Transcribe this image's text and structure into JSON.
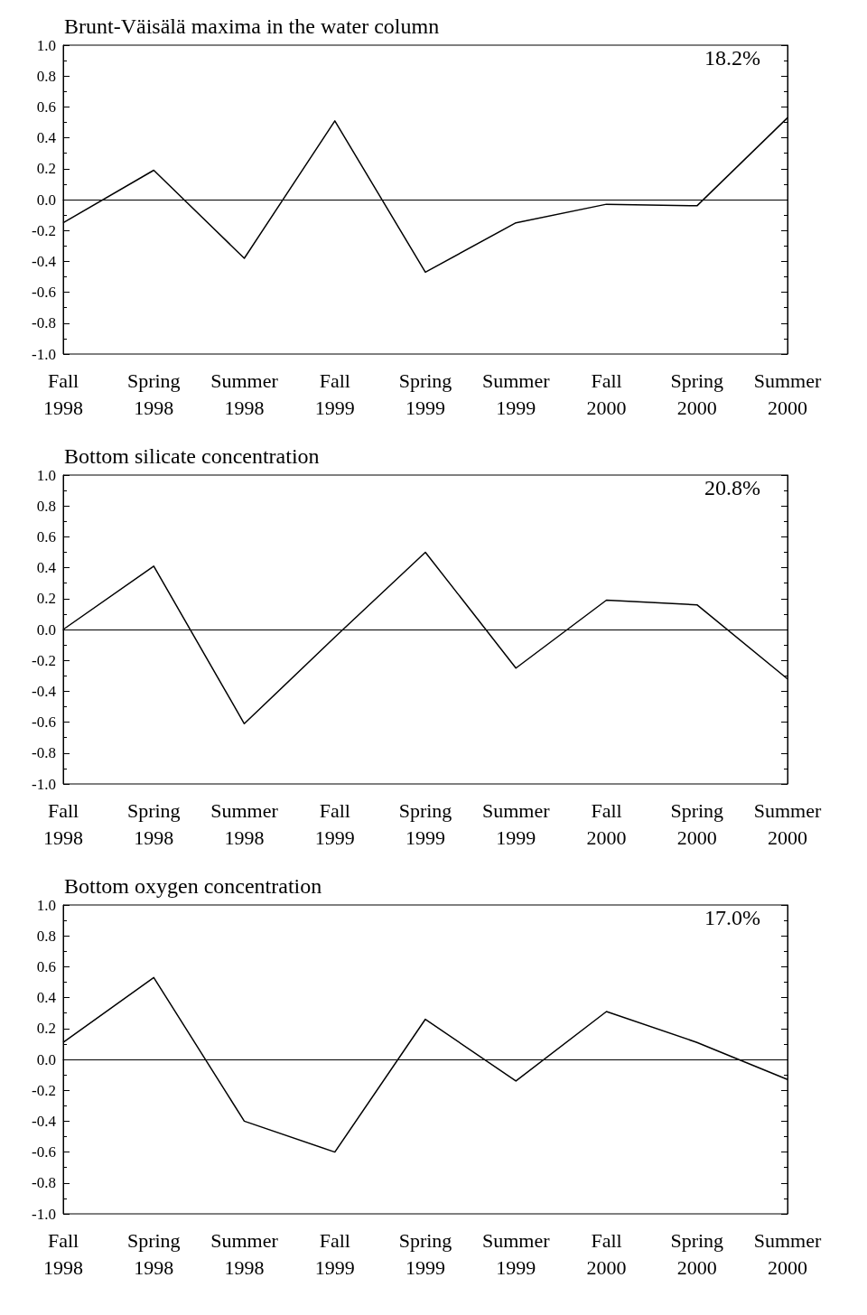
{
  "chart_data": [
    {
      "type": "line",
      "title": "Brunt-Väisälä maxima in the water column",
      "annotations": [
        "18.2%"
      ],
      "categories": [
        "Fall 1998",
        "Spring 1998",
        "Summer 1998",
        "Fall 1999",
        "Spring 1999",
        "Summer 1999",
        "Fall 2000",
        "Spring 2000",
        "Summer 2000"
      ],
      "series": [
        {
          "color": "#000000",
          "values": [
            -0.15,
            0.19,
            -0.38,
            0.51,
            -0.47,
            -0.15,
            -0.03,
            -0.04,
            0.53
          ]
        }
      ],
      "ylim": [
        -1,
        1
      ],
      "yticks": [
        {
          "value": -1,
          "label": "-1.0"
        },
        {
          "value": -0.8,
          "label": "-0.8"
        },
        {
          "value": -0.6,
          "label": "-0.6"
        },
        {
          "value": -0.4,
          "label": "-0.4"
        },
        {
          "value": -0.2,
          "label": "-0.2"
        },
        {
          "value": 0,
          "label": "0.0"
        },
        {
          "value": 0.2,
          "label": "0.2"
        },
        {
          "value": 0.4,
          "label": "0.4"
        },
        {
          "value": 0.6,
          "label": "0.6"
        },
        {
          "value": 0.8,
          "label": "0.8"
        },
        {
          "value": 1,
          "label": "1.0"
        }
      ],
      "ref_lines": [
        {
          "axis": "y",
          "value": 0,
          "color": "#000000"
        }
      ],
      "grid": false,
      "marker": "none",
      "line_style": "solid"
    },
    {
      "type": "line",
      "title": "Bottom silicate concentration",
      "annotations": [
        "20.8%"
      ],
      "categories": [
        "Fall 1998",
        "Spring 1998",
        "Summer 1998",
        "Fall 1999",
        "Spring 1999",
        "Summer 1999",
        "Fall 2000",
        "Spring 2000",
        "Summer 2000"
      ],
      "series": [
        {
          "color": "#000000",
          "values": [
            0.0,
            0.41,
            -0.61,
            -0.05,
            0.5,
            -0.25,
            0.19,
            0.16,
            -0.32
          ]
        }
      ],
      "ylim": [
        -1,
        1
      ],
      "yticks": [
        {
          "value": -1,
          "label": "-1.0"
        },
        {
          "value": -0.8,
          "label": "-0.8"
        },
        {
          "value": -0.6,
          "label": "-0.6"
        },
        {
          "value": -0.4,
          "label": "-0.4"
        },
        {
          "value": -0.2,
          "label": "-0.2"
        },
        {
          "value": 0,
          "label": "0.0"
        },
        {
          "value": 0.2,
          "label": "0.2"
        },
        {
          "value": 0.4,
          "label": "0.4"
        },
        {
          "value": 0.6,
          "label": "0.6"
        },
        {
          "value": 0.8,
          "label": "0.8"
        },
        {
          "value": 1,
          "label": "1.0"
        }
      ],
      "ref_lines": [
        {
          "axis": "y",
          "value": 0,
          "color": "#000000"
        }
      ],
      "grid": false,
      "marker": "none",
      "line_style": "solid"
    },
    {
      "type": "line",
      "title": "Bottom oxygen concentration",
      "annotations": [
        "17.0%"
      ],
      "categories": [
        "Fall 1998",
        "Spring 1998",
        "Summer 1998",
        "Fall 1999",
        "Spring 1999",
        "Summer 1999",
        "Fall 2000",
        "Spring 2000",
        "Summer 2000"
      ],
      "series": [
        {
          "color": "#000000",
          "values": [
            0.11,
            0.53,
            -0.4,
            -0.6,
            0.26,
            -0.14,
            0.31,
            0.11,
            -0.13
          ]
        }
      ],
      "ylim": [
        -1,
        1
      ],
      "yticks": [
        {
          "value": -1,
          "label": "-1.0"
        },
        {
          "value": -0.8,
          "label": "-0.8"
        },
        {
          "value": -0.6,
          "label": "-0.6"
        },
        {
          "value": -0.4,
          "label": "-0.4"
        },
        {
          "value": -0.2,
          "label": "-0.2"
        },
        {
          "value": 0,
          "label": "0.0"
        },
        {
          "value": 0.2,
          "label": "0.2"
        },
        {
          "value": 0.4,
          "label": "0.4"
        },
        {
          "value": 0.6,
          "label": "0.6"
        },
        {
          "value": 0.8,
          "label": "0.8"
        },
        {
          "value": 1,
          "label": "1.0"
        }
      ],
      "ref_lines": [
        {
          "axis": "y",
          "value": 0,
          "color": "#000000"
        }
      ],
      "grid": false,
      "marker": "none",
      "line_style": "solid"
    }
  ]
}
